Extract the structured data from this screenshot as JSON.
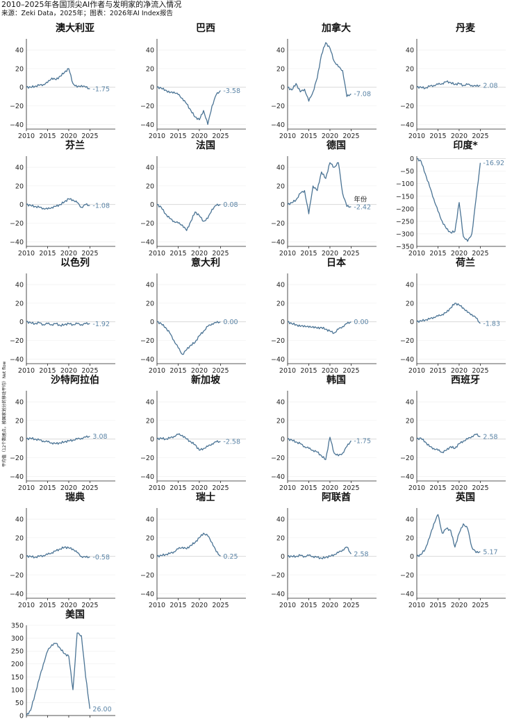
{
  "header": {
    "title": "2010–2025年各国顶尖AI作者与发明家的净流入情况",
    "source": "来源：Zeki Data，2025年；图表：2026年AI Index报告",
    "y_axis_label": "平均值（12个数据点，按国家划分的移动平均）Net flow"
  },
  "chart_data": [
    {
      "type": "line",
      "title": "澳大利亚",
      "end_label": "-1.75",
      "x_ticks": [
        "2010",
        "2015",
        "2020",
        "2025"
      ],
      "y_ticks": [
        "40",
        "20",
        "0",
        "−20",
        "−40"
      ],
      "ylim": [
        -45,
        52
      ],
      "x": [
        2010,
        2011,
        2012,
        2013,
        2014,
        2015,
        2016,
        2017,
        2018,
        2019,
        2020,
        2021,
        2022,
        2023,
        2024,
        2025
      ],
      "values": [
        0,
        0,
        1,
        2,
        3,
        5,
        10,
        8,
        12,
        16,
        20,
        4,
        0,
        2,
        0,
        -1.75
      ]
    },
    {
      "type": "line",
      "title": "巴西",
      "end_label": "-3.58",
      "x_ticks": [
        "2010",
        "2015",
        "2020",
        "2025"
      ],
      "y_ticks": [
        "40",
        "20",
        "0",
        "−20",
        "−40"
      ],
      "ylim": [
        -45,
        52
      ],
      "x": [
        2010,
        2011,
        2012,
        2013,
        2014,
        2015,
        2016,
        2017,
        2018,
        2019,
        2020,
        2021,
        2022,
        2023,
        2024,
        2025
      ],
      "values": [
        0,
        -1,
        -3,
        -6,
        -5,
        -8,
        -12,
        -18,
        -25,
        -32,
        -35,
        -25,
        -40,
        -20,
        -8,
        -3.58
      ]
    },
    {
      "type": "line",
      "title": "加拿大",
      "end_label": "-7.08",
      "x_ticks": [
        "2010",
        "2015",
        "2020",
        "2025"
      ],
      "y_ticks": [
        "40",
        "20",
        "0",
        "−20",
        "−40"
      ],
      "ylim": [
        -45,
        52
      ],
      "x": [
        2010,
        2011,
        2012,
        2013,
        2014,
        2015,
        2016,
        2017,
        2018,
        2019,
        2020,
        2021,
        2022,
        2023,
        2024,
        2025
      ],
      "values": [
        0,
        -3,
        4,
        -5,
        -2,
        -15,
        -5,
        10,
        35,
        48,
        42,
        28,
        22,
        18,
        -10,
        -7.08
      ]
    },
    {
      "type": "line",
      "title": "丹麦",
      "end_label": "2.08",
      "x_ticks": [
        "2010",
        "2015",
        "2020",
        "2025"
      ],
      "y_ticks": [
        "40",
        "20",
        "0",
        "−20",
        "−40"
      ],
      "ylim": [
        -45,
        52
      ],
      "x": [
        2010,
        2011,
        2012,
        2013,
        2014,
        2015,
        2016,
        2017,
        2018,
        2019,
        2020,
        2021,
        2022,
        2023,
        2024,
        2025
      ],
      "values": [
        0,
        0,
        -1,
        1,
        2,
        3,
        4,
        6,
        5,
        3,
        4,
        2,
        3,
        2,
        1,
        2.08
      ]
    },
    {
      "type": "line",
      "title": "芬兰",
      "end_label": "-1.08",
      "x_ticks": [
        "2010",
        "2015",
        "2020",
        "2025"
      ],
      "y_ticks": [
        "40",
        "20",
        "0",
        "−20",
        "−40"
      ],
      "ylim": [
        -45,
        52
      ],
      "x": [
        2010,
        2011,
        2012,
        2013,
        2014,
        2015,
        2016,
        2017,
        2018,
        2019,
        2020,
        2021,
        2022,
        2023,
        2024,
        2025
      ],
      "values": [
        0,
        -1,
        -2,
        -3,
        -4,
        -5,
        -3,
        -2,
        0,
        3,
        6,
        5,
        2,
        -3,
        0,
        -1.08
      ]
    },
    {
      "type": "line",
      "title": "法国",
      "end_label": "0.08",
      "x_ticks": [
        "2010",
        "2015",
        "2020",
        "2025"
      ],
      "y_ticks": [
        "40",
        "20",
        "0",
        "−20",
        "−40"
      ],
      "ylim": [
        -45,
        52
      ],
      "x": [
        2010,
        2011,
        2012,
        2013,
        2014,
        2015,
        2016,
        2017,
        2018,
        2019,
        2020,
        2021,
        2022,
        2023,
        2024,
        2025
      ],
      "values": [
        0,
        -3,
        -10,
        -15,
        -18,
        -20,
        -22,
        -28,
        -18,
        -8,
        -12,
        -18,
        -15,
        -5,
        -1,
        0.08
      ]
    },
    {
      "type": "line",
      "title": "德国",
      "end_label": "-2.42",
      "annotation": "年份",
      "x_ticks": [
        "2010",
        "2015",
        "2020",
        "2025"
      ],
      "y_ticks": [
        "40",
        "20",
        "0",
        "−20",
        "−40"
      ],
      "ylim": [
        -45,
        52
      ],
      "x": [
        2010,
        2011,
        2012,
        2013,
        2014,
        2015,
        2016,
        2017,
        2018,
        2019,
        2020,
        2021,
        2022,
        2023,
        2024,
        2025
      ],
      "values": [
        0,
        2,
        5,
        12,
        15,
        -10,
        20,
        15,
        35,
        28,
        45,
        40,
        45,
        12,
        -2,
        -2.42
      ]
    },
    {
      "type": "line",
      "title": "印度*",
      "end_label": "-16.92",
      "x_ticks": [
        "2010",
        "2015",
        "2020",
        "2025"
      ],
      "y_ticks": [
        "0",
        "−50",
        "−100",
        "−150",
        "−200",
        "−250",
        "−300",
        "−350"
      ],
      "ylim": [
        -350,
        10
      ],
      "x": [
        2010,
        2011,
        2012,
        2013,
        2014,
        2015,
        2016,
        2017,
        2018,
        2019,
        2020,
        2021,
        2022,
        2023,
        2024,
        2025
      ],
      "values": [
        0,
        -10,
        -60,
        -110,
        -160,
        -210,
        -250,
        -280,
        -295,
        -290,
        -175,
        -310,
        -330,
        -300,
        -160,
        -16.92
      ]
    },
    {
      "type": "line",
      "title": "以色列",
      "end_label": "-1.92",
      "x_ticks": [
        "2010",
        "2015",
        "2020",
        "2025"
      ],
      "y_ticks": [
        "40",
        "20",
        "0",
        "−20",
        "−40"
      ],
      "ylim": [
        -45,
        52
      ],
      "x": [
        2010,
        2011,
        2012,
        2013,
        2014,
        2015,
        2016,
        2017,
        2018,
        2019,
        2020,
        2021,
        2022,
        2023,
        2024,
        2025
      ],
      "values": [
        0,
        -1,
        -2,
        -1,
        -3,
        -2,
        -3,
        -2,
        -4,
        -3,
        -2,
        -3,
        -2,
        -3,
        -2,
        -1.92
      ]
    },
    {
      "type": "line",
      "title": "意大利",
      "end_label": "0.00",
      "x_ticks": [
        "2010",
        "2015",
        "2020",
        "2025"
      ],
      "y_ticks": [
        "40",
        "20",
        "0",
        "−20",
        "−40"
      ],
      "ylim": [
        -45,
        52
      ],
      "x": [
        2010,
        2011,
        2012,
        2013,
        2014,
        2015,
        2016,
        2017,
        2018,
        2019,
        2020,
        2021,
        2022,
        2023,
        2024,
        2025
      ],
      "values": [
        0,
        -2,
        -6,
        -12,
        -20,
        -28,
        -35,
        -30,
        -25,
        -22,
        -15,
        -10,
        -5,
        -2,
        -1,
        0.0
      ]
    },
    {
      "type": "line",
      "title": "日本",
      "end_label": "0.00",
      "x_ticks": [
        "2010",
        "2015",
        "2020",
        "2025"
      ],
      "y_ticks": [
        "40",
        "20",
        "0",
        "−20",
        "−40"
      ],
      "ylim": [
        -45,
        52
      ],
      "x": [
        2010,
        2011,
        2012,
        2013,
        2014,
        2015,
        2016,
        2017,
        2018,
        2019,
        2020,
        2021,
        2022,
        2023,
        2024,
        2025
      ],
      "values": [
        0,
        -2,
        -3,
        -5,
        -4,
        -6,
        -5,
        -7,
        -6,
        -8,
        -10,
        -12,
        -8,
        -5,
        -2,
        0.0
      ]
    },
    {
      "type": "line",
      "title": "荷兰",
      "end_label": "-1.83",
      "x_ticks": [
        "2010",
        "2015",
        "2020",
        "2025"
      ],
      "y_ticks": [
        "40",
        "20",
        "0",
        "−20",
        "−40"
      ],
      "ylim": [
        -45,
        52
      ],
      "x": [
        2010,
        2011,
        2012,
        2013,
        2014,
        2015,
        2016,
        2017,
        2018,
        2019,
        2020,
        2021,
        2022,
        2023,
        2024,
        2025
      ],
      "values": [
        0,
        1,
        2,
        3,
        5,
        6,
        8,
        10,
        15,
        20,
        18,
        15,
        10,
        8,
        4,
        -1.83
      ]
    },
    {
      "type": "line",
      "title": "沙特阿拉伯",
      "end_label": "3.08",
      "x_ticks": [
        "2010",
        "2015",
        "2020",
        "2025"
      ],
      "y_ticks": [
        "40",
        "20",
        "0",
        "−20",
        "−40"
      ],
      "ylim": [
        -45,
        52
      ],
      "x": [
        2010,
        2011,
        2012,
        2013,
        2014,
        2015,
        2016,
        2017,
        2018,
        2019,
        2020,
        2021,
        2022,
        2023,
        2024,
        2025
      ],
      "values": [
        0,
        1,
        0,
        -1,
        -2,
        -3,
        -4,
        -5,
        -4,
        -3,
        -2,
        -1,
        0,
        1,
        2,
        3.08
      ]
    },
    {
      "type": "line",
      "title": "新加坡",
      "end_label": "-2.58",
      "x_ticks": [
        "2010",
        "2015",
        "2020",
        "2025"
      ],
      "y_ticks": [
        "40",
        "20",
        "0",
        "−20",
        "−40"
      ],
      "ylim": [
        -45,
        52
      ],
      "x": [
        2010,
        2011,
        2012,
        2013,
        2014,
        2015,
        2016,
        2017,
        2018,
        2019,
        2020,
        2021,
        2022,
        2023,
        2024,
        2025
      ],
      "values": [
        0,
        1,
        0,
        1,
        3,
        5,
        4,
        0,
        -3,
        -6,
        -12,
        -10,
        -8,
        -5,
        -3,
        -2.58
      ]
    },
    {
      "type": "line",
      "title": "韩国",
      "end_label": "-1.75",
      "x_ticks": [
        "2010",
        "2015",
        "2020",
        "2025"
      ],
      "y_ticks": [
        "40",
        "20",
        "0",
        "−20",
        "−40"
      ],
      "ylim": [
        -45,
        52
      ],
      "x": [
        2010,
        2011,
        2012,
        2013,
        2014,
        2015,
        2016,
        2017,
        2018,
        2019,
        2020,
        2021,
        2022,
        2023,
        2024,
        2025
      ],
      "values": [
        0,
        -1,
        -3,
        -5,
        -8,
        -10,
        -12,
        -14,
        -18,
        -22,
        2,
        -15,
        -18,
        -15,
        -8,
        -1.75
      ]
    },
    {
      "type": "line",
      "title": "西班牙",
      "end_label": "2.58",
      "x_ticks": [
        "2010",
        "2015",
        "2020",
        "2025"
      ],
      "y_ticks": [
        "40",
        "20",
        "0",
        "−20",
        "−40"
      ],
      "ylim": [
        -45,
        52
      ],
      "x": [
        2010,
        2011,
        2012,
        2013,
        2014,
        2015,
        2016,
        2017,
        2018,
        2019,
        2020,
        2021,
        2022,
        2023,
        2024,
        2025
      ],
      "values": [
        0,
        1,
        -3,
        -8,
        -10,
        -12,
        -14,
        -12,
        -8,
        -10,
        -5,
        -2,
        0,
        3,
        5,
        2.58
      ]
    },
    {
      "type": "line",
      "title": "瑞典",
      "end_label": "-0.58",
      "x_ticks": [
        "2010",
        "2015",
        "2020",
        "2025"
      ],
      "y_ticks": [
        "40",
        "20",
        "0",
        "−20",
        "−40"
      ],
      "ylim": [
        -45,
        52
      ],
      "x": [
        2010,
        2011,
        2012,
        2013,
        2014,
        2015,
        2016,
        2017,
        2018,
        2019,
        2020,
        2021,
        2022,
        2023,
        2024,
        2025
      ],
      "values": [
        0,
        0,
        -1,
        0,
        1,
        2,
        4,
        6,
        8,
        10,
        9,
        8,
        4,
        0,
        -1,
        -0.58
      ]
    },
    {
      "type": "line",
      "title": "瑞士",
      "end_label": "0.25",
      "x_ticks": [
        "2010",
        "2015",
        "2020",
        "2025"
      ],
      "y_ticks": [
        "40",
        "20",
        "0",
        "−20",
        "−40"
      ],
      "ylim": [
        -45,
        52
      ],
      "x": [
        2010,
        2011,
        2012,
        2013,
        2014,
        2015,
        2016,
        2017,
        2018,
        2019,
        2020,
        2021,
        2022,
        2023,
        2024,
        2025
      ],
      "values": [
        0,
        1,
        2,
        3,
        5,
        8,
        10,
        8,
        12,
        15,
        20,
        25,
        22,
        15,
        5,
        0.25
      ]
    },
    {
      "type": "line",
      "title": "阿联酋",
      "end_label": "2.58",
      "x_ticks": [
        "2010",
        "2015",
        "2020",
        "2025"
      ],
      "y_ticks": [
        "40",
        "20",
        "0",
        "−20",
        "−40"
      ],
      "ylim": [
        -45,
        52
      ],
      "x": [
        2010,
        2011,
        2012,
        2013,
        2014,
        2015,
        2016,
        2017,
        2018,
        2019,
        2020,
        2021,
        2022,
        2023,
        2024,
        2025
      ],
      "values": [
        0,
        0,
        0,
        1,
        0,
        1,
        0,
        -1,
        -2,
        -1,
        0,
        2,
        4,
        7,
        10,
        2.58
      ]
    },
    {
      "type": "line",
      "title": "英国",
      "end_label": "5.17",
      "x_ticks": [
        "2010",
        "2015",
        "2020",
        "2025"
      ],
      "y_ticks": [
        "40",
        "20",
        "0",
        "−20",
        "−40"
      ],
      "ylim": [
        -45,
        52
      ],
      "x": [
        2010,
        2011,
        2012,
        2013,
        2014,
        2015,
        2016,
        2017,
        2018,
        2019,
        2020,
        2021,
        2022,
        2023,
        2024,
        2025
      ],
      "values": [
        0,
        2,
        8,
        20,
        35,
        45,
        25,
        30,
        28,
        10,
        25,
        35,
        30,
        10,
        4,
        5.17
      ]
    },
    {
      "type": "line",
      "title": "美国",
      "end_label": "26.00",
      "x_ticks": [
        "2010",
        "2015",
        "2020",
        "2025"
      ],
      "y_ticks": [
        "350",
        "300",
        "250",
        "200",
        "150",
        "100",
        "50",
        "0"
      ],
      "ylim": [
        0,
        350
      ],
      "x": [
        2010,
        2011,
        2012,
        2013,
        2014,
        2015,
        2016,
        2017,
        2018,
        2019,
        2020,
        2021,
        2022,
        2023,
        2024,
        2025
      ],
      "values": [
        0,
        20,
        80,
        140,
        200,
        250,
        275,
        280,
        260,
        240,
        230,
        100,
        320,
        310,
        150,
        26.0
      ]
    }
  ]
}
